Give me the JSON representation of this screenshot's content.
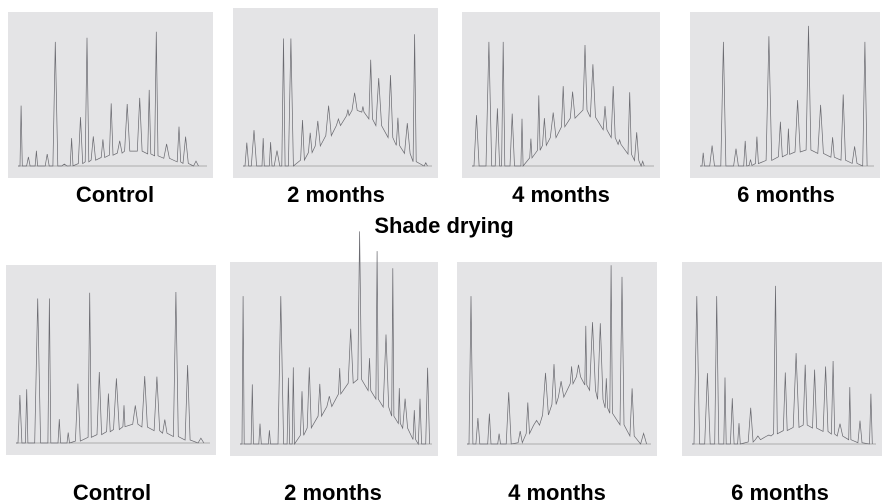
{
  "top_row": {
    "captions": [
      "Control",
      "2 months",
      "4 months",
      "6 months"
    ]
  },
  "middle_label": "Shade drying",
  "bottom_row": {
    "captions": [
      "Control",
      "2 months",
      "4 months",
      "6 months"
    ]
  }
}
